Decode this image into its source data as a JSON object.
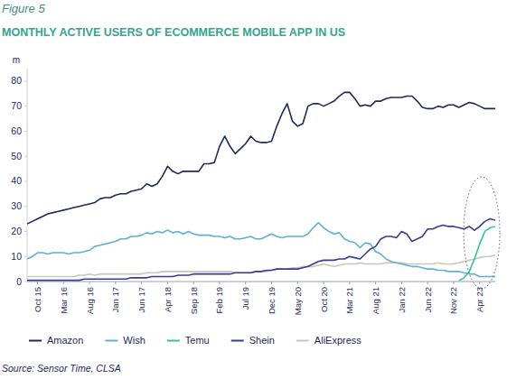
{
  "chart_data": {
    "type": "line",
    "figure": "Figure 5",
    "title": "MONTHLY ACTIVE USERS OF ECOMMERCE MOBILE APP IN US",
    "y_label": "m",
    "source": "Source: Sensor Time, CLSA",
    "categories": [
      null,
      null,
      "Oct 15",
      null,
      null,
      null,
      null,
      "Mar 16",
      null,
      null,
      null,
      null,
      "Aug 16",
      null,
      null,
      null,
      null,
      "Jan 17",
      null,
      null,
      null,
      null,
      "Jun 17",
      null,
      null,
      null,
      null,
      "Apr 18",
      null,
      null,
      null,
      null,
      "Sep 18",
      null,
      null,
      null,
      null,
      "Feb 19",
      null,
      null,
      null,
      null,
      "Jul 19",
      null,
      null,
      null,
      null,
      "Dec 19",
      null,
      null,
      null,
      null,
      "May 20",
      null,
      null,
      null,
      null,
      "Oct 20",
      null,
      null,
      null,
      null,
      "Mar 21",
      null,
      null,
      null,
      null,
      "Aug 21",
      null,
      null,
      null,
      null,
      "Jan 22",
      null,
      null,
      null,
      null,
      "Jun 22",
      null,
      null,
      null,
      null,
      "Nov 22",
      null,
      null,
      null,
      null,
      "Apr 23",
      null,
      null,
      null
    ],
    "series": [
      {
        "name": "Amazon",
        "color": "#1c2a5c",
        "values": [
          23,
          24,
          25,
          26,
          27,
          27.5,
          28,
          28.5,
          29,
          29.5,
          30,
          30.5,
          31,
          31.5,
          33,
          33.5,
          33.5,
          34.5,
          35,
          35,
          36,
          36.5,
          37,
          39,
          38,
          39,
          42,
          46,
          44,
          43,
          44,
          44,
          44,
          44,
          47,
          47,
          47.5,
          54,
          58,
          54,
          51,
          53,
          55,
          58,
          56,
          55.5,
          55.5,
          56,
          62,
          67,
          71,
          64,
          62,
          63,
          70,
          71,
          71,
          70,
          71,
          72,
          74,
          75.5,
          75.5,
          73,
          70,
          70.5,
          70,
          72,
          72,
          73,
          73.5,
          73.5,
          73.5,
          74,
          74,
          72,
          69.5,
          69,
          69,
          70,
          69.5,
          70.5,
          70.5,
          69.5,
          70.5,
          71.5,
          71,
          70,
          69,
          69,
          69
        ]
      },
      {
        "name": "Wish",
        "color": "#5fb0d9",
        "values": [
          9,
          10,
          11.5,
          11.5,
          11,
          11.5,
          11.5,
          11.5,
          11,
          11.5,
          11.5,
          12,
          12.5,
          14,
          14.5,
          15,
          15.5,
          16,
          17,
          17,
          18,
          18,
          18.5,
          19.5,
          19,
          20,
          19.5,
          20.5,
          19.5,
          20,
          19,
          20,
          19,
          18.5,
          18.5,
          18.5,
          18,
          18,
          17.5,
          18,
          17,
          17,
          17.5,
          18,
          17,
          17,
          18,
          19,
          18,
          17.5,
          18,
          18,
          18,
          18,
          19,
          21.5,
          23.5,
          21.5,
          20,
          19,
          19.5,
          17,
          16,
          15.5,
          13.5,
          15.5,
          15,
          12,
          11,
          9,
          8,
          7.5,
          7,
          6.5,
          6,
          6,
          5.5,
          5,
          5,
          4.5,
          4.5,
          4,
          4,
          4,
          3.5,
          3,
          3,
          2,
          2,
          2,
          2
        ]
      },
      {
        "name": "Temu",
        "color": "#2fc3a0",
        "values": [
          null,
          null,
          null,
          null,
          null,
          null,
          null,
          null,
          null,
          null,
          null,
          null,
          null,
          null,
          null,
          null,
          null,
          null,
          null,
          null,
          null,
          null,
          null,
          null,
          null,
          null,
          null,
          null,
          null,
          null,
          null,
          null,
          null,
          null,
          null,
          null,
          null,
          null,
          null,
          null,
          null,
          null,
          null,
          null,
          null,
          null,
          null,
          null,
          null,
          null,
          null,
          null,
          null,
          null,
          null,
          null,
          null,
          null,
          null,
          null,
          null,
          null,
          null,
          null,
          null,
          null,
          null,
          null,
          null,
          null,
          null,
          null,
          null,
          null,
          null,
          null,
          null,
          null,
          null,
          null,
          null,
          null,
          null,
          0.3,
          1.5,
          4,
          9,
          15,
          20,
          21.5,
          22
        ]
      },
      {
        "name": "Shein",
        "color": "#3b3c8e",
        "values": [
          0.5,
          0.5,
          0.5,
          0.5,
          0.5,
          0.5,
          0.5,
          0.5,
          0.5,
          0.5,
          0.5,
          1,
          1,
          1,
          1,
          1,
          1,
          1,
          1,
          1,
          1.5,
          1.5,
          1.5,
          1.5,
          2,
          2,
          2,
          2,
          2,
          2.5,
          2.5,
          2.5,
          3,
          3,
          3,
          3,
          3,
          3,
          3,
          3,
          3.5,
          3.5,
          3.5,
          3.5,
          4,
          4,
          4.5,
          4.5,
          5,
          5,
          5,
          5,
          5,
          5.5,
          6,
          7,
          8,
          8.5,
          8.5,
          8.5,
          9,
          9,
          10,
          9.5,
          9,
          11,
          13,
          14,
          17,
          18,
          18,
          17.5,
          20,
          19,
          16,
          17,
          18,
          21,
          21,
          22,
          22.5,
          22,
          22,
          21.5,
          21,
          22,
          20.5,
          22,
          24,
          25,
          24.5
        ]
      },
      {
        "name": "AliExpress",
        "color": "#c9c5ba",
        "values": [
          2,
          2,
          2,
          2,
          2,
          2,
          2,
          2,
          2,
          2,
          2.5,
          2.5,
          3,
          2.5,
          3,
          3,
          3,
          3,
          3,
          3,
          3,
          3,
          3,
          3.5,
          3.5,
          3.5,
          4,
          4,
          4,
          4,
          4,
          4,
          4,
          4,
          4,
          4,
          4,
          4,
          4,
          4,
          3.5,
          3.5,
          3.5,
          3.5,
          4,
          4,
          4,
          4.5,
          5,
          5,
          5,
          5.5,
          5.5,
          6,
          6,
          6,
          6.5,
          7,
          6.5,
          6,
          6.5,
          7,
          7,
          7,
          7.5,
          7,
          7,
          7,
          7,
          7.5,
          7.5,
          7.5,
          7.5,
          7,
          7,
          7,
          7,
          7,
          7,
          7.5,
          7,
          7,
          7,
          7.5,
          8,
          8.5,
          9,
          9.5,
          10,
          10,
          10.5
        ]
      }
    ],
    "ylim": [
      0,
      85
    ],
    "yticks": [
      0,
      10,
      20,
      30,
      40,
      50,
      60,
      70,
      80
    ],
    "grid": false,
    "legend": "bottom"
  }
}
